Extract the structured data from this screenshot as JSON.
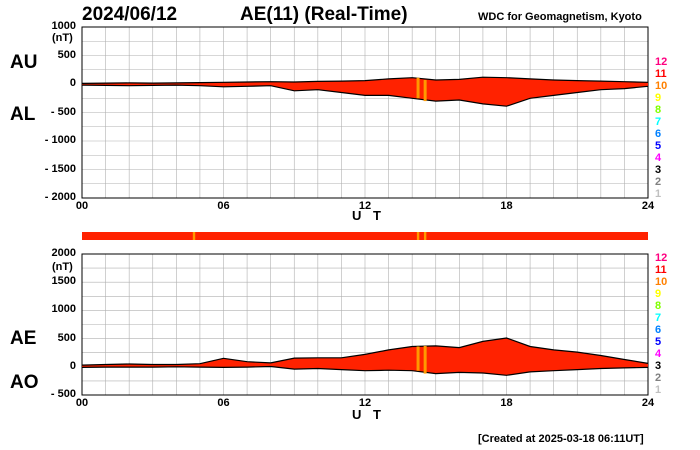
{
  "header": {
    "date": "2024/06/12",
    "title": "AE(11) (Real-Time)",
    "source": "WDC for Geomagnetism, Kyoto"
  },
  "footer": {
    "created": "[Created at 2025-03-18 06:11UT]"
  },
  "legend": {
    "levels": [
      "12",
      "11",
      "10",
      "9",
      "8",
      "7",
      "6",
      "5",
      "4",
      "3",
      "2",
      "1"
    ],
    "colors": [
      "#ff0080",
      "#ff0000",
      "#ff8000",
      "#ffff00",
      "#80ff00",
      "#00ffff",
      "#0080ff",
      "#0000ff",
      "#ff00ff",
      "#000000",
      "#808080",
      "#c0c0c0"
    ]
  },
  "colors": {
    "fill": "#ff2200",
    "line": "#000000",
    "grid": "#b0b0b0",
    "band_main": "#ff2200",
    "band_mark": "#ff9900"
  },
  "chart_data": [
    {
      "type": "area",
      "name": "AU/AL",
      "labels": {
        "upper": "AU",
        "lower": "AL"
      },
      "unit": "(nT)",
      "xlabel": "U T",
      "xlim": [
        0,
        24
      ],
      "xticks": [
        "00",
        "06",
        "12",
        "18",
        "24"
      ],
      "ylim": [
        -2000,
        1000
      ],
      "yticks": [
        "1000",
        "500",
        "0",
        "- 500",
        "- 1000",
        "- 1500",
        "- 2000"
      ],
      "grid": true,
      "x": [
        0,
        1,
        2,
        3,
        4,
        5,
        6,
        7,
        8,
        9,
        10,
        11,
        12,
        13,
        14,
        15,
        16,
        17,
        18,
        19,
        20,
        21,
        22,
        23,
        24
      ],
      "series": [
        {
          "name": "AU",
          "values": [
            10,
            15,
            20,
            15,
            20,
            25,
            30,
            35,
            40,
            35,
            45,
            50,
            60,
            90,
            110,
            70,
            80,
            120,
            110,
            90,
            70,
            60,
            50,
            40,
            30
          ]
        },
        {
          "name": "AL",
          "values": [
            -20,
            -25,
            -30,
            -25,
            -20,
            -30,
            -50,
            -40,
            -30,
            -120,
            -100,
            -150,
            -200,
            -200,
            -250,
            -300,
            -280,
            -350,
            -390,
            -250,
            -200,
            -150,
            -100,
            -80,
            -40
          ]
        }
      ]
    },
    {
      "type": "area",
      "name": "AE/AO",
      "labels": {
        "upper": "AE",
        "lower": "AO"
      },
      "unit": "(nT)",
      "xlabel": "U T",
      "xlim": [
        0,
        24
      ],
      "xticks": [
        "00",
        "06",
        "12",
        "18",
        "24"
      ],
      "ylim": [
        -500,
        2000
      ],
      "yticks": [
        "2000",
        "1500",
        "1000",
        "500",
        "0",
        "- 500"
      ],
      "grid": true,
      "x": [
        0,
        1,
        2,
        3,
        4,
        5,
        6,
        7,
        8,
        9,
        10,
        11,
        12,
        13,
        14,
        15,
        16,
        17,
        18,
        19,
        20,
        21,
        22,
        23,
        24
      ],
      "series": [
        {
          "name": "AE",
          "values": [
            30,
            40,
            50,
            40,
            40,
            55,
            150,
            90,
            70,
            155,
            160,
            160,
            220,
            300,
            360,
            370,
            340,
            450,
            510,
            360,
            300,
            260,
            200,
            130,
            60
          ]
        },
        {
          "name": "AO",
          "values": [
            -10,
            -5,
            -5,
            -5,
            0,
            -5,
            -10,
            -5,
            5,
            -40,
            -30,
            -50,
            -70,
            -60,
            -70,
            -120,
            -100,
            -110,
            -150,
            -90,
            -70,
            -50,
            -30,
            -20,
            -10
          ]
        }
      ]
    }
  ],
  "activity_band": {
    "marks_ut": [
      4.75,
      14.25,
      14.55
    ]
  }
}
